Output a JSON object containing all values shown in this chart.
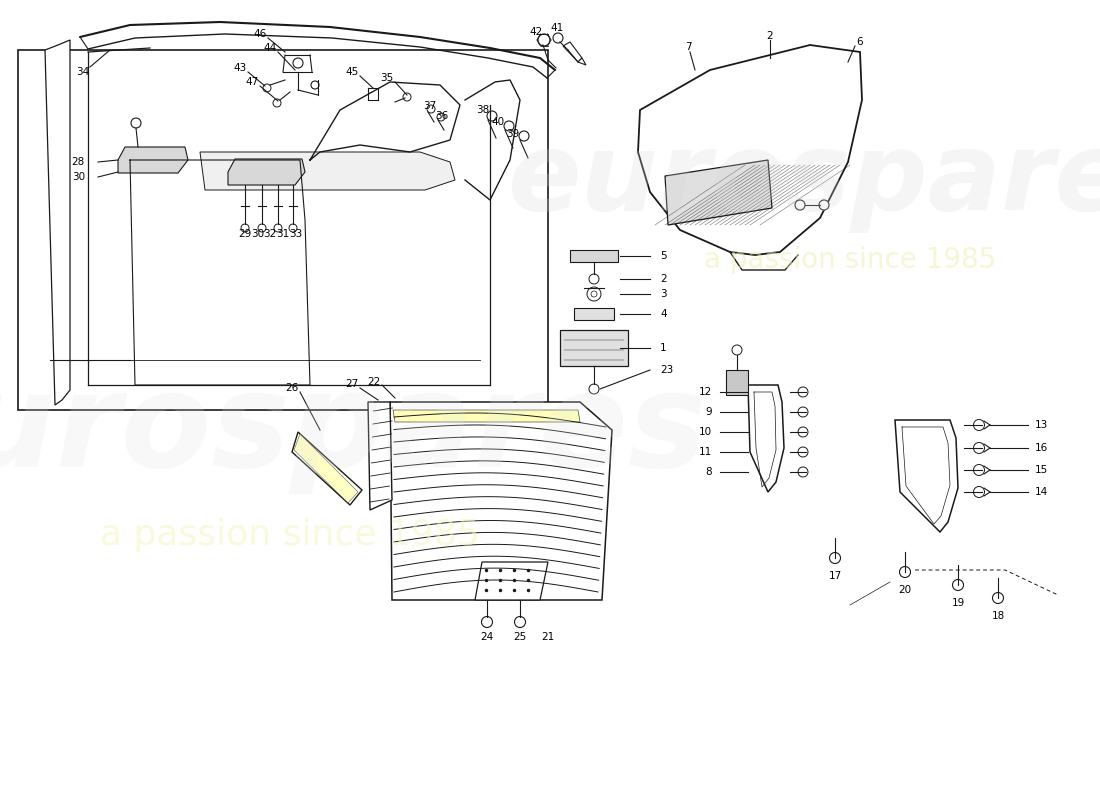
{
  "bg_color": "#ffffff",
  "line_color": "#1a1a1a",
  "label_color": "#000000",
  "fs": 7.5,
  "watermark1": "eurospares",
  "watermark2": "a passion since 1985",
  "wm_color1": "#e0e0e0",
  "wm_color2": "#f5f5c0",
  "wm_color_right": "#d8d8d8",
  "wm_color_right2": "#eeeeaa"
}
